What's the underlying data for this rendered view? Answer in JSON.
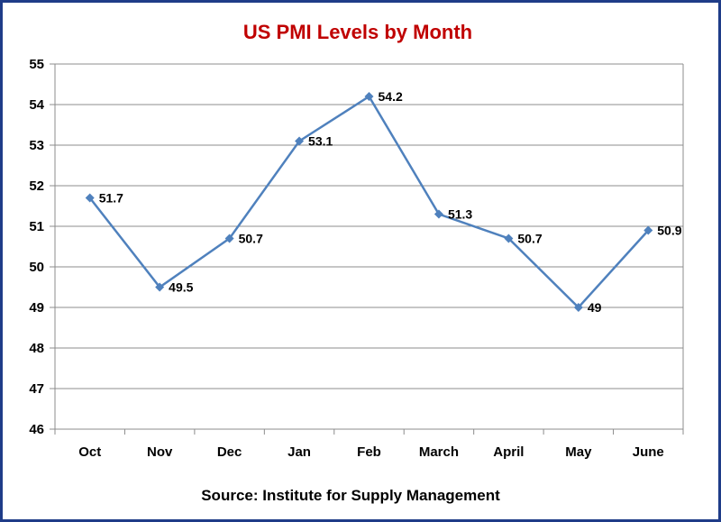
{
  "chart_data": {
    "type": "line",
    "title": "US PMI Levels by Month",
    "categories": [
      "Oct",
      "Nov",
      "Dec",
      "Jan",
      "Feb",
      "March",
      "April",
      "May",
      "June"
    ],
    "series": [
      {
        "values": [
          51.7,
          49.5,
          50.7,
          53.1,
          54.2,
          51.3,
          50.7,
          49,
          50.9
        ]
      }
    ],
    "data_labels": [
      "51.7",
      "49.5",
      "50.7",
      "53.1",
      "54.2",
      "51.3",
      "50.7",
      "49",
      "50.9"
    ],
    "ylim": [
      46,
      55
    ],
    "yticks": [
      "46",
      "47",
      "48",
      "49",
      "50",
      "51",
      "52",
      "53",
      "54",
      "55"
    ],
    "grid": true,
    "legend": "none",
    "source_note": "Source: Institute for Supply Management",
    "colors": {
      "line": "#4f81bd",
      "title": "#c00000",
      "frame": "#1f3c88",
      "grid": "#8c8c8c"
    }
  }
}
